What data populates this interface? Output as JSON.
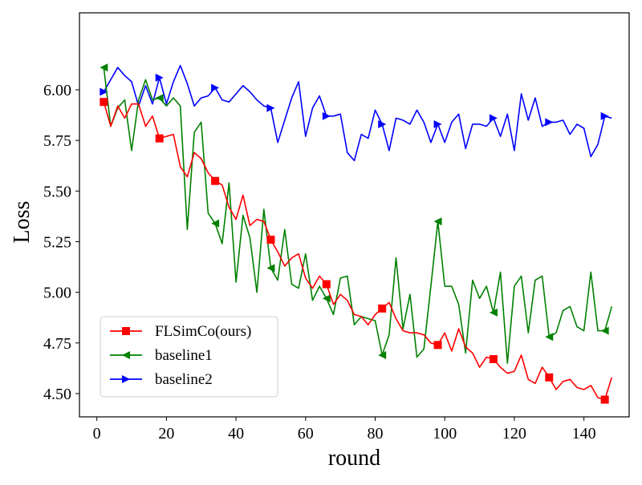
{
  "chart_data": {
    "type": "line",
    "title": "",
    "xlabel": "round",
    "ylabel": "Loss",
    "xlim": [
      -5,
      153
    ],
    "ylim": [
      4.385,
      6.38
    ],
    "xticks": [
      0,
      20,
      40,
      60,
      80,
      100,
      120,
      140
    ],
    "yticks": [
      4.5,
      4.75,
      5.0,
      5.25,
      5.5,
      5.75,
      6.0
    ],
    "ytick_labels": [
      "4.50",
      "4.75",
      "5.00",
      "5.25",
      "5.50",
      "5.75",
      "6.00"
    ],
    "legend_position": "lower-left",
    "series": [
      {
        "name": "FLSimCo(ours)",
        "color": "#ff0000",
        "marker": "square",
        "marker_every": 8,
        "marker_start": 0,
        "x": [
          2,
          4,
          6,
          8,
          10,
          12,
          14,
          16,
          18,
          20,
          22,
          24,
          26,
          28,
          30,
          32,
          34,
          36,
          38,
          40,
          42,
          44,
          46,
          48,
          50,
          52,
          54,
          56,
          58,
          60,
          62,
          64,
          66,
          68,
          70,
          72,
          74,
          76,
          78,
          80,
          82,
          84,
          86,
          88,
          90,
          92,
          94,
          96,
          98,
          100,
          102,
          104,
          106,
          108,
          110,
          112,
          114,
          116,
          118,
          120,
          122,
          124,
          126,
          128,
          130,
          132,
          134,
          136,
          138,
          140,
          142,
          144,
          146,
          148
        ],
        "y": [
          5.94,
          5.82,
          5.92,
          5.86,
          5.93,
          5.93,
          5.82,
          5.87,
          5.76,
          5.77,
          5.78,
          5.62,
          5.57,
          5.69,
          5.66,
          5.59,
          5.55,
          5.53,
          5.42,
          5.36,
          5.48,
          5.33,
          5.36,
          5.35,
          5.26,
          5.2,
          5.13,
          5.17,
          5.19,
          5.07,
          5.02,
          5.08,
          5.04,
          4.94,
          4.99,
          4.96,
          4.89,
          4.88,
          4.84,
          4.89,
          4.92,
          4.95,
          4.87,
          4.81,
          4.8,
          4.8,
          4.79,
          4.75,
          4.74,
          4.8,
          4.71,
          4.82,
          4.73,
          4.7,
          4.63,
          4.68,
          4.67,
          4.63,
          4.6,
          4.61,
          4.69,
          4.57,
          4.55,
          4.63,
          4.58,
          4.52,
          4.56,
          4.57,
          4.53,
          4.52,
          4.54,
          4.48,
          4.47,
          4.58
        ]
      },
      {
        "name": "baseline1",
        "color": "#008000",
        "marker": "triangle-left",
        "marker_every": 8,
        "marker_start": 0,
        "x": [
          2,
          4,
          6,
          8,
          10,
          12,
          14,
          16,
          18,
          20,
          22,
          24,
          26,
          28,
          30,
          32,
          34,
          36,
          38,
          40,
          42,
          44,
          46,
          48,
          50,
          52,
          54,
          56,
          58,
          60,
          62,
          64,
          66,
          68,
          70,
          72,
          74,
          76,
          78,
          80,
          82,
          84,
          86,
          88,
          90,
          92,
          94,
          96,
          98,
          100,
          102,
          104,
          106,
          108,
          110,
          112,
          114,
          116,
          118,
          120,
          122,
          124,
          126,
          128,
          130,
          132,
          134,
          136,
          138,
          140,
          142,
          144,
          146,
          148
        ],
        "y": [
          6.11,
          5.82,
          5.91,
          5.95,
          5.7,
          5.95,
          6.05,
          5.95,
          5.96,
          5.92,
          5.96,
          5.92,
          5.31,
          5.79,
          5.84,
          5.39,
          5.34,
          5.24,
          5.54,
          5.05,
          5.38,
          5.27,
          5.0,
          5.41,
          5.12,
          5.06,
          5.31,
          5.04,
          5.02,
          5.19,
          4.96,
          5.03,
          4.97,
          4.89,
          5.07,
          5.08,
          4.84,
          4.88,
          4.87,
          4.86,
          4.69,
          4.79,
          5.17,
          4.82,
          4.99,
          4.68,
          4.72,
          5.03,
          5.35,
          5.03,
          5.03,
          4.94,
          4.7,
          5.06,
          4.97,
          5.03,
          4.9,
          5.1,
          4.65,
          5.03,
          5.08,
          4.8,
          5.06,
          5.08,
          4.78,
          4.8,
          4.91,
          4.93,
          4.83,
          4.81,
          5.1,
          4.81,
          4.81,
          4.93
        ]
      },
      {
        "name": "baseline2",
        "color": "#0000ff",
        "marker": "triangle-right",
        "marker_every": 8,
        "marker_start": 0,
        "x": [
          2,
          4,
          6,
          8,
          10,
          12,
          14,
          16,
          18,
          20,
          22,
          24,
          26,
          28,
          30,
          32,
          34,
          36,
          38,
          40,
          42,
          44,
          46,
          48,
          50,
          52,
          54,
          56,
          58,
          60,
          62,
          64,
          66,
          68,
          70,
          72,
          74,
          76,
          78,
          80,
          82,
          84,
          86,
          88,
          90,
          92,
          94,
          96,
          98,
          100,
          102,
          104,
          106,
          108,
          110,
          112,
          114,
          116,
          118,
          120,
          122,
          124,
          126,
          128,
          130,
          132,
          134,
          136,
          138,
          140,
          142,
          144,
          146,
          148
        ],
        "y": [
          5.99,
          6.05,
          6.11,
          6.07,
          6.04,
          5.92,
          6.02,
          5.93,
          6.06,
          5.93,
          6.04,
          6.12,
          6.03,
          5.92,
          5.96,
          5.97,
          6.01,
          5.95,
          5.94,
          5.98,
          6.02,
          5.99,
          5.95,
          5.92,
          5.91,
          5.74,
          5.85,
          5.96,
          6.04,
          5.77,
          5.91,
          5.97,
          5.87,
          5.87,
          5.88,
          5.69,
          5.65,
          5.78,
          5.76,
          5.9,
          5.83,
          5.7,
          5.86,
          5.85,
          5.83,
          5.9,
          5.84,
          5.74,
          5.83,
          5.74,
          5.84,
          5.88,
          5.71,
          5.83,
          5.83,
          5.82,
          5.86,
          5.77,
          5.88,
          5.7,
          5.98,
          5.85,
          5.96,
          5.82,
          5.84,
          5.84,
          5.85,
          5.78,
          5.83,
          5.81,
          5.67,
          5.73,
          5.87,
          5.86
        ]
      }
    ]
  }
}
